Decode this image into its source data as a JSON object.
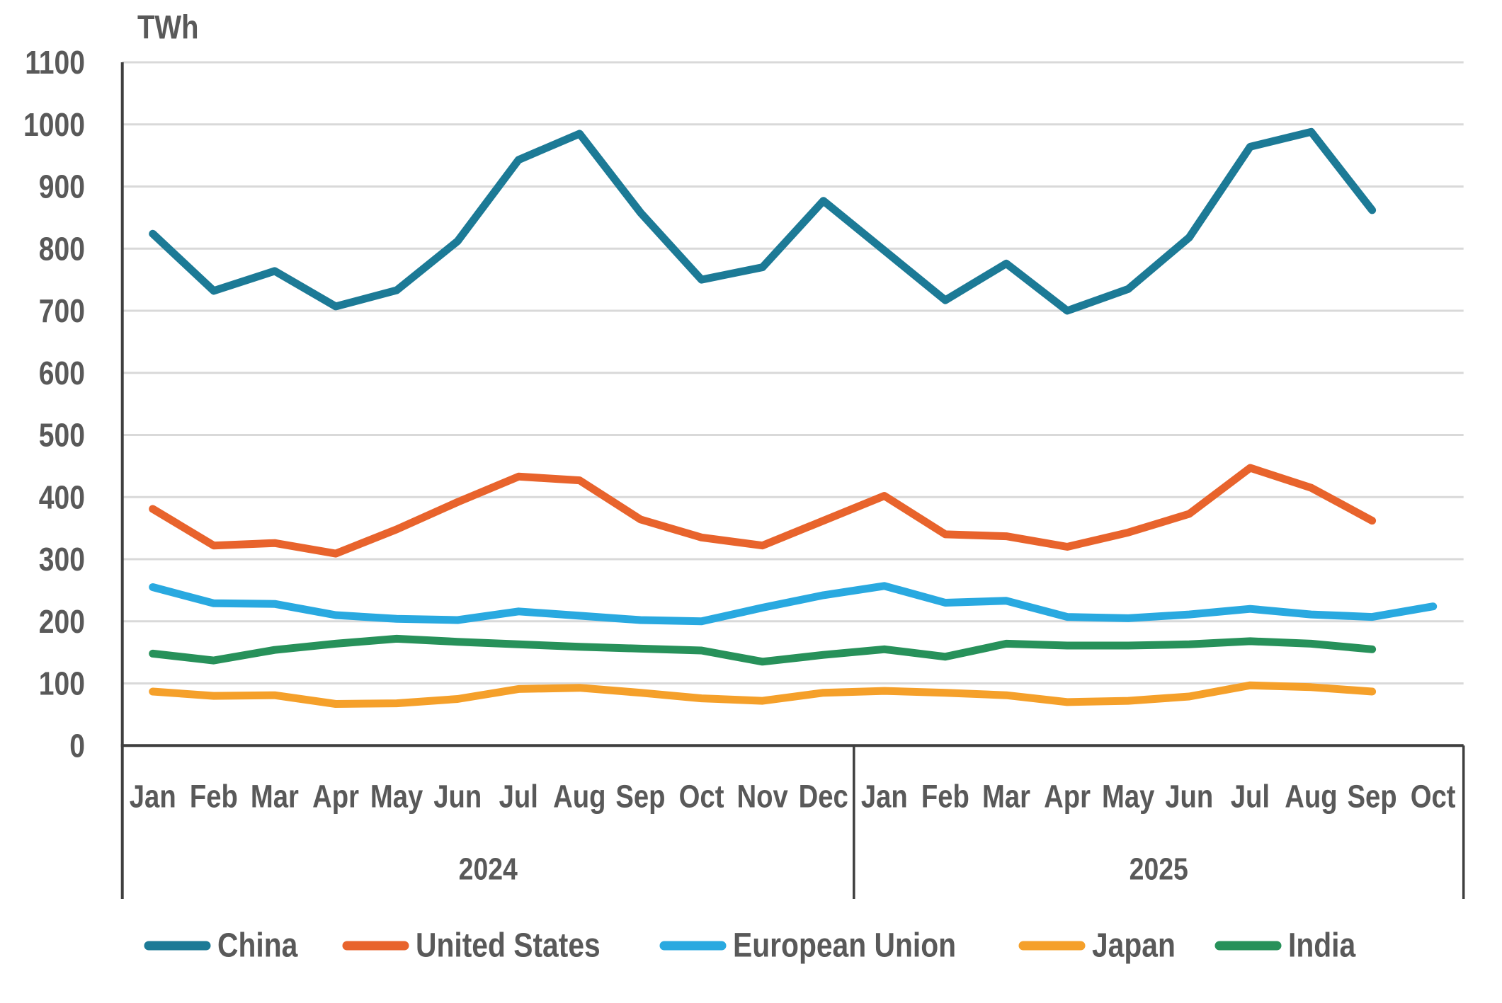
{
  "chart_data": {
    "type": "line",
    "title": "",
    "unit_label": "TWh",
    "ylabel": "TWh",
    "ylim": [
      0,
      1100
    ],
    "ytick_step": 100,
    "y_tick_labels": [
      "0",
      "100",
      "200",
      "300",
      "400",
      "500",
      "600",
      "700",
      "800",
      "900",
      "1000",
      "1100"
    ],
    "grid": true,
    "legend_position": "bottom",
    "categories": [
      "Jan",
      "Feb",
      "Mar",
      "Apr",
      "May",
      "Jun",
      "Jul",
      "Aug",
      "Sep",
      "Oct",
      "Nov",
      "Dec",
      "Jan",
      "Feb",
      "Mar",
      "Apr",
      "May",
      "Jun",
      "Jul",
      "Aug",
      "Sep",
      "Oct"
    ],
    "year_groups": [
      {
        "label": "2024",
        "months": 12
      },
      {
        "label": "2025",
        "months": 10
      }
    ],
    "series": [
      {
        "name": "China",
        "color": "#1C7A96",
        "values": [
          824,
          732,
          764,
          707,
          733,
          812,
          943,
          985,
          858,
          750,
          770,
          877,
          797,
          717,
          776,
          700,
          735,
          818,
          964,
          988,
          862
        ]
      },
      {
        "name": "United States",
        "color": "#E8632C",
        "values": [
          381,
          322,
          326,
          309,
          348,
          392,
          433,
          427,
          364,
          335,
          322,
          362,
          402,
          340,
          337,
          320,
          343,
          373,
          447,
          415,
          362
        ]
      },
      {
        "name": "European Union",
        "color": "#29A9E0",
        "values": [
          255,
          229,
          228,
          210,
          204,
          202,
          216,
          209,
          202,
          200,
          222,
          242,
          257,
          230,
          233,
          207,
          205,
          211,
          220,
          211,
          207,
          224
        ]
      },
      {
        "name": "Japan",
        "color": "#F5A02A",
        "values": [
          87,
          80,
          81,
          67,
          68,
          75,
          91,
          93,
          85,
          76,
          72,
          85,
          88,
          85,
          81,
          70,
          72,
          79,
          97,
          94,
          87
        ]
      },
      {
        "name": "India",
        "color": "#27915A",
        "values": [
          148,
          137,
          154,
          164,
          172,
          167,
          163,
          159,
          156,
          153,
          135,
          146,
          155,
          143,
          164,
          161,
          161,
          163,
          168,
          164,
          155
        ]
      }
    ],
    "axis_color": "#3F3F3F",
    "grid_color": "#D9D9D9",
    "text_color": "#595959"
  }
}
